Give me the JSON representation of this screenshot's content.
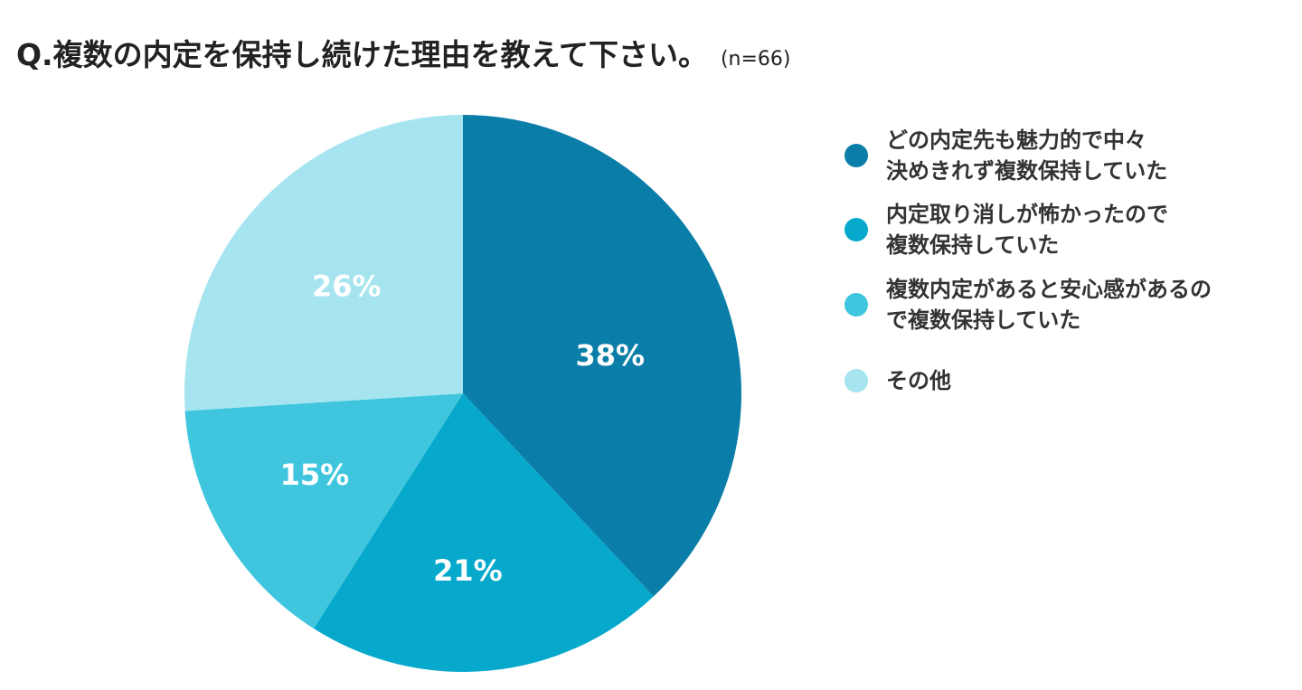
{
  "chart_data": {
    "type": "pie",
    "title": "Q.複数の内定を保持し続けた理由を教えて下さい。",
    "subtitle": "(n=66)",
    "legend_position": "right",
    "slices": [
      {
        "label": "どの内定先も魅力的で中々\n決めきれず複数保持していた",
        "value": 38,
        "value_label": "38%",
        "color": "#0a7ea8"
      },
      {
        "label": "内定取り消しが怖かったので\n複数保持していた",
        "value": 21,
        "value_label": "21%",
        "color": "#06a9cc"
      },
      {
        "label": "複数内定があると安心感があるの\nで複数保持していた",
        "value": 15,
        "value_label": "15%",
        "color": "#3fc6de"
      },
      {
        "label": "その他",
        "value": 26,
        "value_label": "26%",
        "color": "#a6e5f0"
      }
    ]
  }
}
